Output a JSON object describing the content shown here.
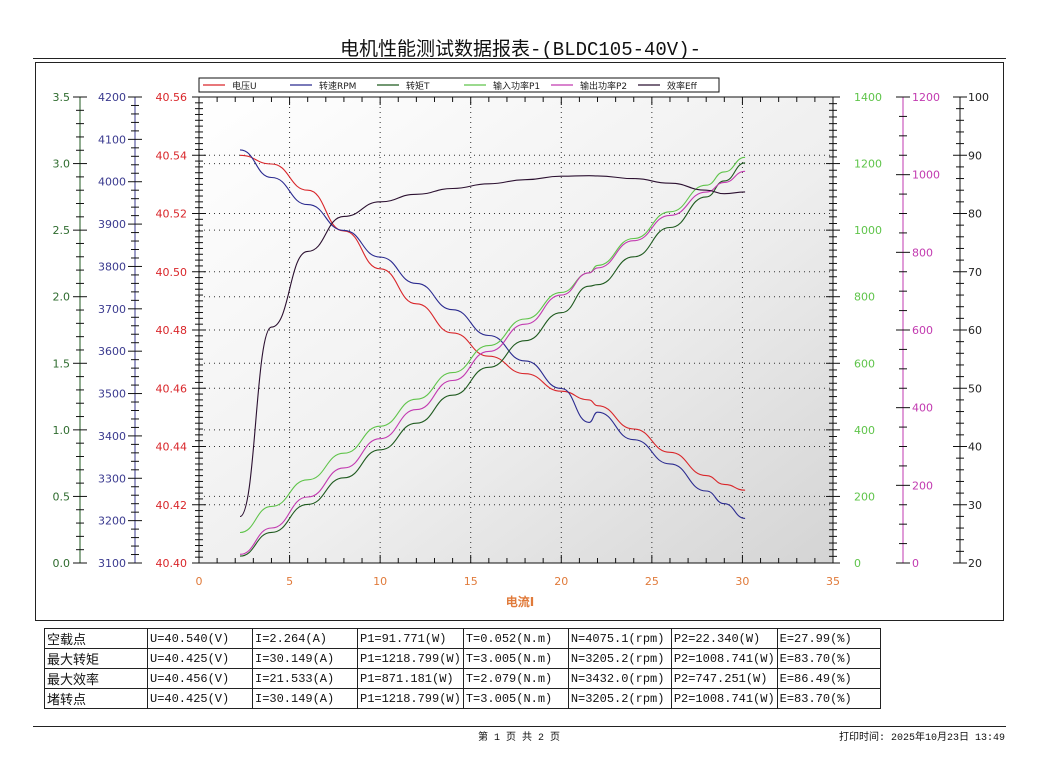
{
  "header": {
    "title": "电机性能测试数据报表-(BLDC105-40V)-"
  },
  "legend": [
    {
      "label": "电压U",
      "color": "#d9262a"
    },
    {
      "label": "转速RPM",
      "color": "#2a2a8f"
    },
    {
      "label": "转矩T",
      "color": "#1f5a1f"
    },
    {
      "label": "输入功率P1",
      "color": "#5fc44a"
    },
    {
      "label": "输出功率P2",
      "color": "#c23ab0"
    },
    {
      "label": "效率Eff",
      "color": "#2b1030"
    }
  ],
  "axes": {
    "x": {
      "label": "电流I",
      "min": 0,
      "max": 35,
      "ticks": [
        "0",
        "5",
        "10",
        "15",
        "20",
        "25",
        "30",
        "35"
      ],
      "color": "#e07a3a"
    },
    "torque": {
      "min": 0,
      "max": 3.5,
      "ticks": [
        "0.0",
        "0.5",
        "1.0",
        "1.5",
        "2.0",
        "2.5",
        "3.0",
        "3.5"
      ],
      "color": "#2e6b2e"
    },
    "rpm": {
      "min": 3100,
      "max": 4200,
      "ticks": [
        "3100",
        "3200",
        "3300",
        "3400",
        "3500",
        "3600",
        "3700",
        "3800",
        "3900",
        "4000",
        "4100",
        "4200"
      ],
      "color": "#3a3a8f"
    },
    "voltage": {
      "min": 40.4,
      "max": 40.56,
      "ticks": [
        "40.40",
        "40.42",
        "40.44",
        "40.46",
        "40.48",
        "40.50",
        "40.52",
        "40.54",
        "40.56"
      ],
      "color": "#d9262a"
    },
    "p1": {
      "min": 0,
      "max": 1400,
      "ticks": [
        "0",
        "200",
        "400",
        "600",
        "800",
        "1000",
        "1200",
        "1400"
      ],
      "color": "#5fc44a"
    },
    "p2": {
      "min": 0,
      "max": 1200,
      "ticks": [
        "0",
        "200",
        "400",
        "600",
        "800",
        "1000",
        "1200"
      ],
      "color": "#c23ab0"
    },
    "eff": {
      "min": 20,
      "max": 100,
      "ticks": [
        "20",
        "30",
        "40",
        "50",
        "60",
        "70",
        "80",
        "90",
        "100"
      ],
      "color": "#222222"
    }
  },
  "chart_data": {
    "type": "line",
    "title": "电机性能测试数据报表-(BLDC105-40V)-",
    "xlabel": "电流I",
    "xlim": [
      0,
      35
    ],
    "grid": true,
    "legend_position": "top",
    "x": [
      2.264,
      4,
      6,
      8,
      10,
      12,
      14,
      16,
      18,
      20,
      21.533,
      22,
      24,
      26,
      28,
      29,
      30.149
    ],
    "series": [
      {
        "name": "电压U",
        "axis": "voltage",
        "ylim": [
          40.4,
          40.56
        ],
        "values": [
          40.54,
          40.537,
          40.528,
          40.514,
          40.501,
          40.489,
          40.479,
          40.471,
          40.465,
          40.459,
          40.456,
          40.454,
          40.446,
          40.438,
          40.43,
          40.427,
          40.425
        ]
      },
      {
        "name": "转速RPM",
        "axis": "rpm",
        "ylim": [
          3100,
          4200
        ],
        "values": [
          4075.1,
          4010,
          3946,
          3885,
          3822,
          3760,
          3698,
          3637,
          3577,
          3512,
          3432.0,
          3456,
          3391,
          3334,
          3270,
          3240,
          3205.2
        ]
      },
      {
        "name": "转矩T",
        "axis": "torque",
        "ylim": [
          0,
          3.5
        ],
        "values": [
          0.052,
          0.23,
          0.44,
          0.64,
          0.85,
          1.05,
          1.26,
          1.47,
          1.67,
          1.88,
          2.079,
          2.09,
          2.3,
          2.52,
          2.75,
          2.87,
          3.005
        ]
      },
      {
        "name": "输入功率P1",
        "axis": "p1",
        "ylim": [
          0,
          1400
        ],
        "values": [
          91.771,
          170,
          250,
          330,
          411,
          492,
          572,
          653,
          733,
          813,
          871.181,
          894,
          975,
          1055,
          1135,
          1175,
          1218.799
        ]
      },
      {
        "name": "输出功率P2",
        "axis": "p2",
        "ylim": [
          0,
          1200
        ],
        "values": [
          22.34,
          90,
          170,
          245,
          320,
          395,
          470,
          545,
          615,
          690,
          747.251,
          760,
          830,
          895,
          955,
          980,
          1008.741
        ]
      },
      {
        "name": "效率Eff",
        "axis": "eff",
        "ylim": [
          20,
          100
        ],
        "values": [
          27.99,
          60.5,
          73.5,
          79.5,
          82.0,
          83.3,
          84.3,
          85.1,
          85.8,
          86.4,
          86.49,
          86.45,
          86.0,
          85.2,
          84.0,
          83.4,
          83.7
        ]
      }
    ]
  },
  "summary_table": {
    "rows": [
      {
        "label": "空载点",
        "cells": [
          "U=40.540(V)",
          "I=2.264(A)",
          "P1=91.771(W)",
          "T=0.052(N.m)",
          "N=4075.1(rpm)",
          "P2=22.340(W)",
          "E=27.99(%)"
        ]
      },
      {
        "label": "最大转矩",
        "cells": [
          "U=40.425(V)",
          "I=30.149(A)",
          "P1=1218.799(W)",
          "T=3.005(N.m)",
          "N=3205.2(rpm)",
          "P2=1008.741(W)",
          "E=83.70(%)"
        ]
      },
      {
        "label": "最大效率",
        "cells": [
          "U=40.456(V)",
          "I=21.533(A)",
          "P1=871.181(W)",
          "T=2.079(N.m)",
          "N=3432.0(rpm)",
          "P2=747.251(W)",
          "E=86.49(%)"
        ]
      },
      {
        "label": "堵转点",
        "cells": [
          "U=40.425(V)",
          "I=30.149(A)",
          "P1=1218.799(W)",
          "T=3.005(N.m)",
          "N=3205.2(rpm)",
          "P2=1008.741(W)",
          "E=83.70(%)"
        ]
      }
    ]
  },
  "footer": {
    "page_info": "第 1 页  共 2 页",
    "print_time": "打印时间: 2025年10月23日 13:49"
  }
}
